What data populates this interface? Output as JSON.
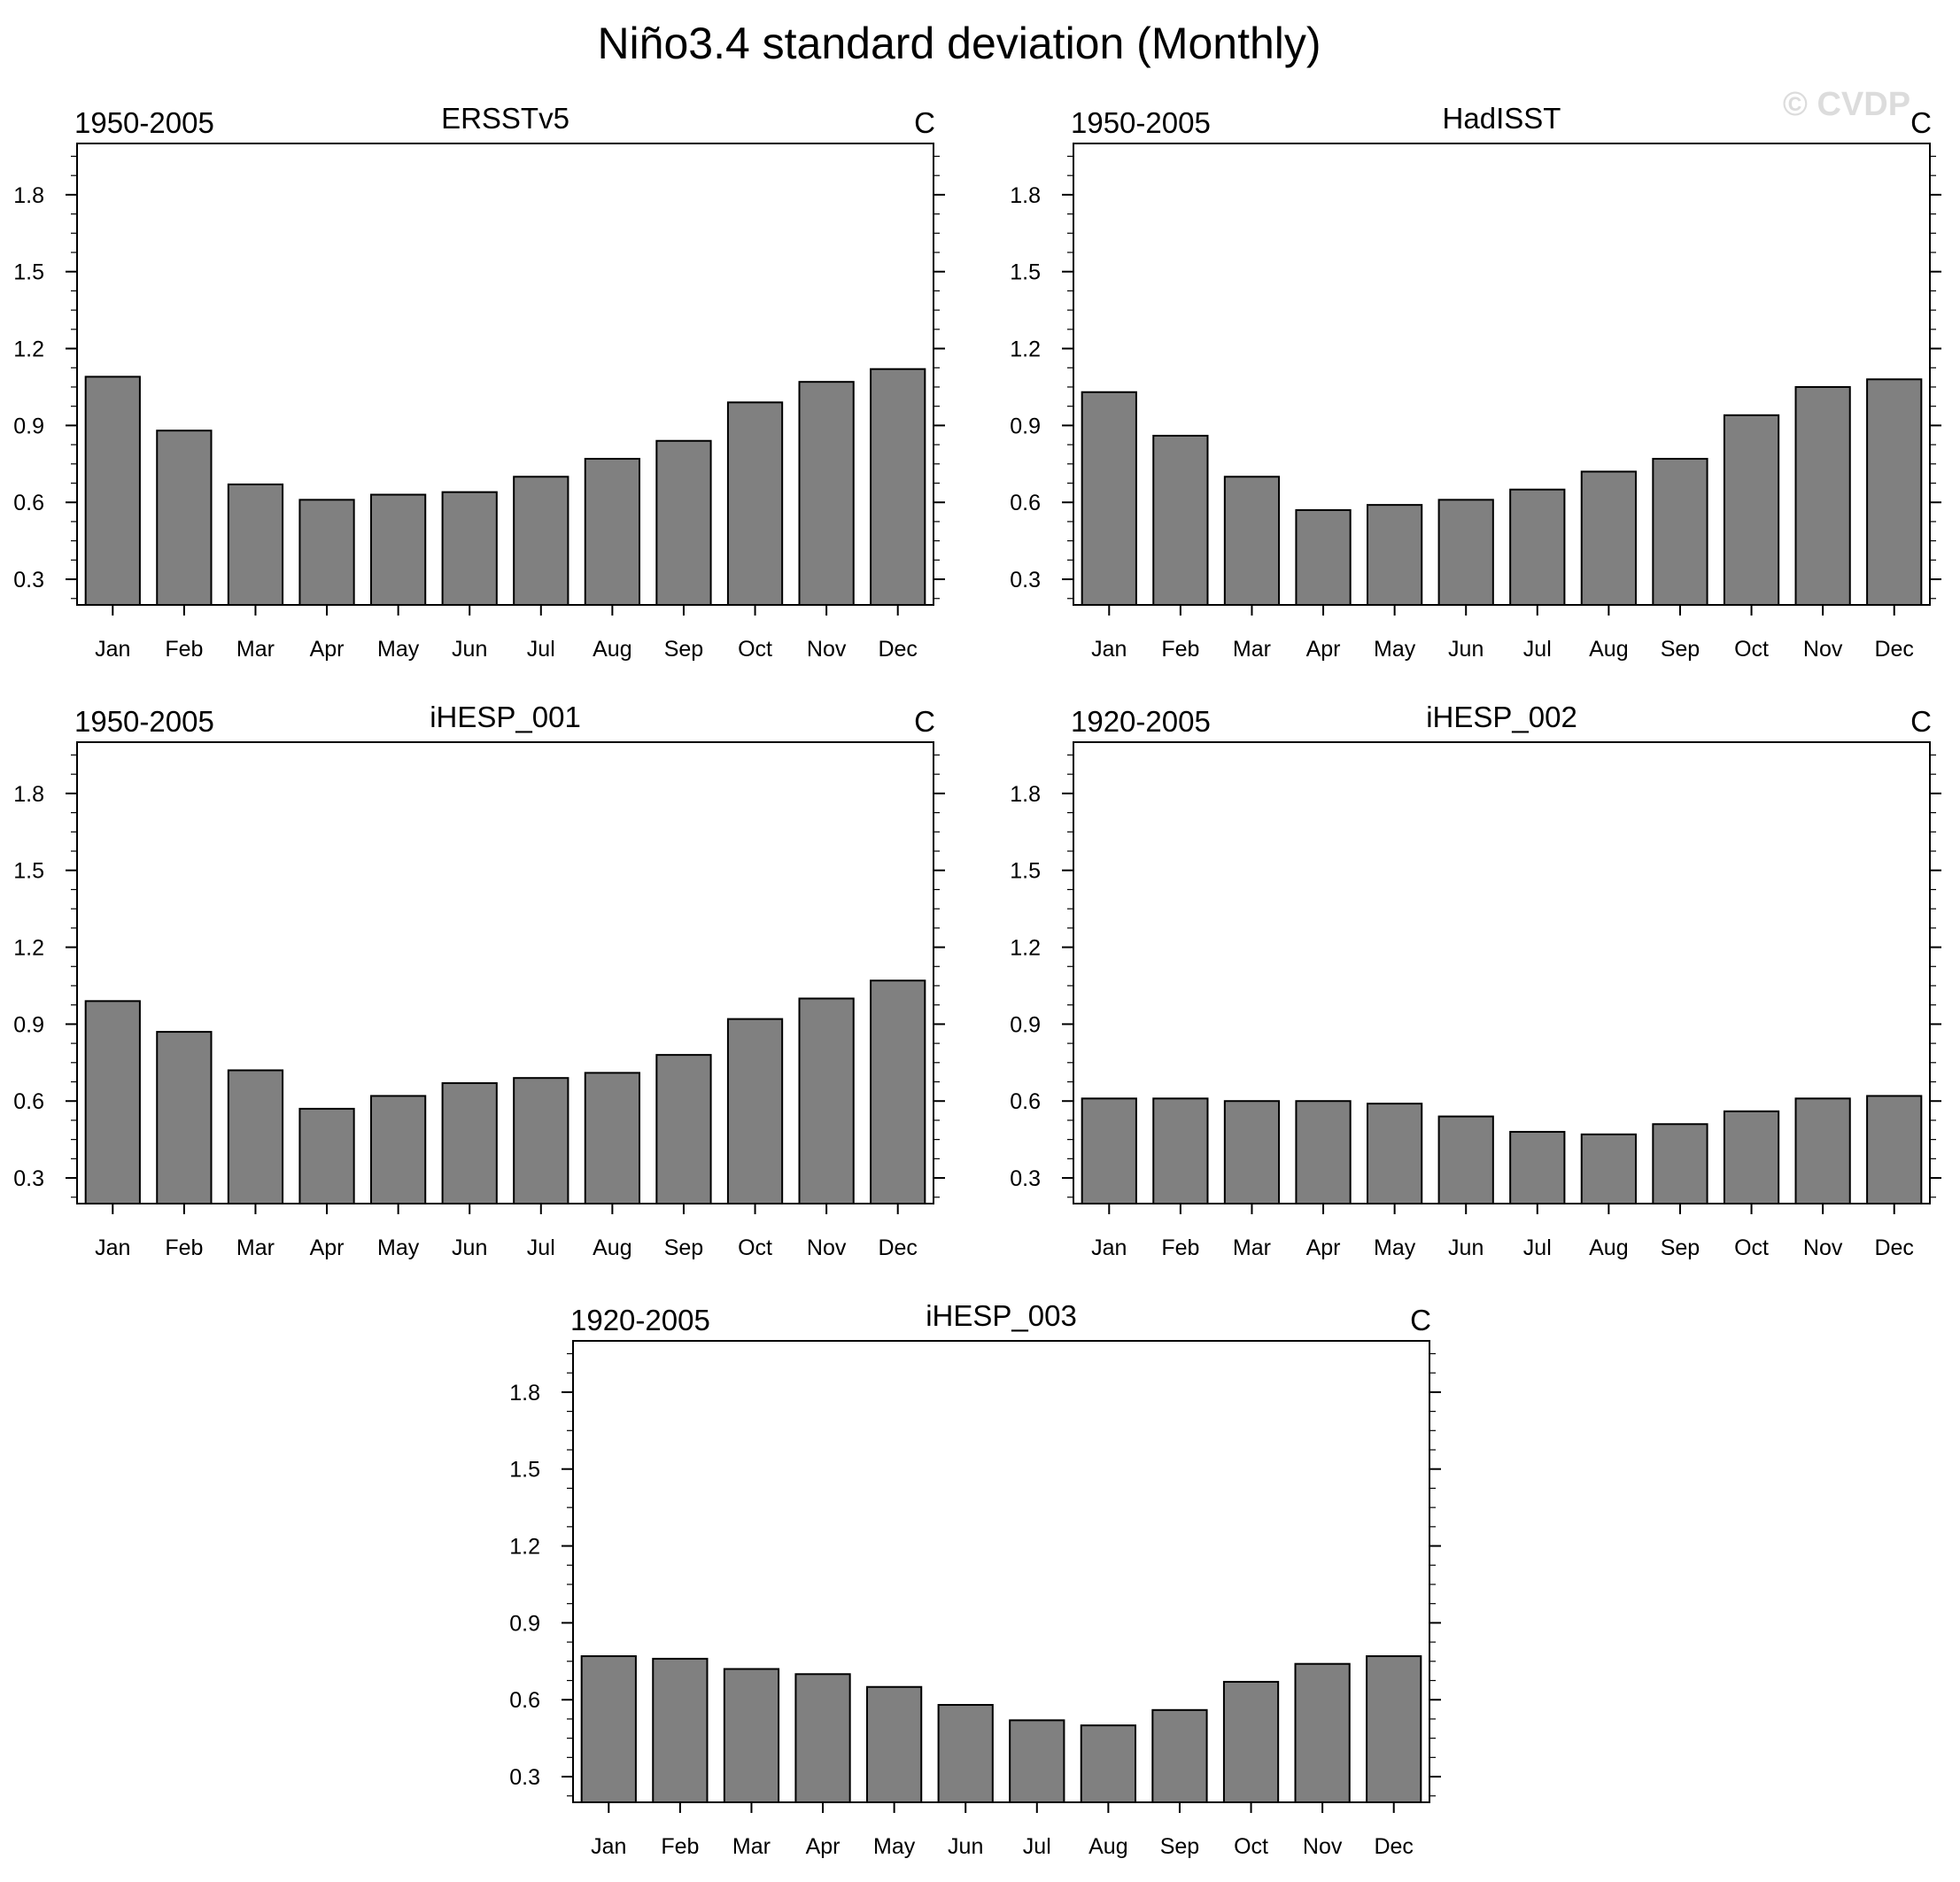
{
  "title": "Niño3.4 standard deviation (Monthly)",
  "watermark": "© CVDP",
  "colors": {
    "bar_fill": "#808080",
    "bar_edge": "#000000",
    "watermark": "#dcdcdc"
  },
  "chart_data": [
    {
      "type": "bar",
      "title": "ERSSTv5",
      "period": "1950-2005",
      "units": "C",
      "categories": [
        "Jan",
        "Feb",
        "Mar",
        "Apr",
        "May",
        "Jun",
        "Jul",
        "Aug",
        "Sep",
        "Oct",
        "Nov",
        "Dec"
      ],
      "values": [
        1.09,
        0.88,
        0.67,
        0.61,
        0.63,
        0.64,
        0.7,
        0.77,
        0.84,
        0.99,
        1.07,
        1.12
      ],
      "ylim": [
        0.2,
        2.0
      ],
      "yticks": [
        0.3,
        0.6,
        0.9,
        1.2,
        1.5,
        1.8
      ]
    },
    {
      "type": "bar",
      "title": "HadISST",
      "period": "1950-2005",
      "units": "C",
      "categories": [
        "Jan",
        "Feb",
        "Mar",
        "Apr",
        "May",
        "Jun",
        "Jul",
        "Aug",
        "Sep",
        "Oct",
        "Nov",
        "Dec"
      ],
      "values": [
        1.03,
        0.86,
        0.7,
        0.57,
        0.59,
        0.61,
        0.65,
        0.72,
        0.77,
        0.94,
        1.05,
        1.08
      ],
      "ylim": [
        0.2,
        2.0
      ],
      "yticks": [
        0.3,
        0.6,
        0.9,
        1.2,
        1.5,
        1.8
      ]
    },
    {
      "type": "bar",
      "title": "iHESP_001",
      "period": "1950-2005",
      "units": "C",
      "categories": [
        "Jan",
        "Feb",
        "Mar",
        "Apr",
        "May",
        "Jun",
        "Jul",
        "Aug",
        "Sep",
        "Oct",
        "Nov",
        "Dec"
      ],
      "values": [
        0.99,
        0.87,
        0.72,
        0.57,
        0.62,
        0.67,
        0.69,
        0.71,
        0.78,
        0.92,
        1.0,
        1.07
      ],
      "ylim": [
        0.2,
        2.0
      ],
      "yticks": [
        0.3,
        0.6,
        0.9,
        1.2,
        1.5,
        1.8
      ]
    },
    {
      "type": "bar",
      "title": "iHESP_002",
      "period": "1920-2005",
      "units": "C",
      "categories": [
        "Jan",
        "Feb",
        "Mar",
        "Apr",
        "May",
        "Jun",
        "Jul",
        "Aug",
        "Sep",
        "Oct",
        "Nov",
        "Dec"
      ],
      "values": [
        0.61,
        0.61,
        0.6,
        0.6,
        0.59,
        0.54,
        0.48,
        0.47,
        0.51,
        0.56,
        0.61,
        0.62
      ],
      "ylim": [
        0.2,
        2.0
      ],
      "yticks": [
        0.3,
        0.6,
        0.9,
        1.2,
        1.5,
        1.8
      ]
    },
    {
      "type": "bar",
      "title": "iHESP_003",
      "period": "1920-2005",
      "units": "C",
      "categories": [
        "Jan",
        "Feb",
        "Mar",
        "Apr",
        "May",
        "Jun",
        "Jul",
        "Aug",
        "Sep",
        "Oct",
        "Nov",
        "Dec"
      ],
      "values": [
        0.77,
        0.76,
        0.72,
        0.7,
        0.65,
        0.58,
        0.52,
        0.5,
        0.56,
        0.67,
        0.74,
        0.77
      ],
      "ylim": [
        0.2,
        2.0
      ],
      "yticks": [
        0.3,
        0.6,
        0.9,
        1.2,
        1.5,
        1.8
      ]
    }
  ]
}
